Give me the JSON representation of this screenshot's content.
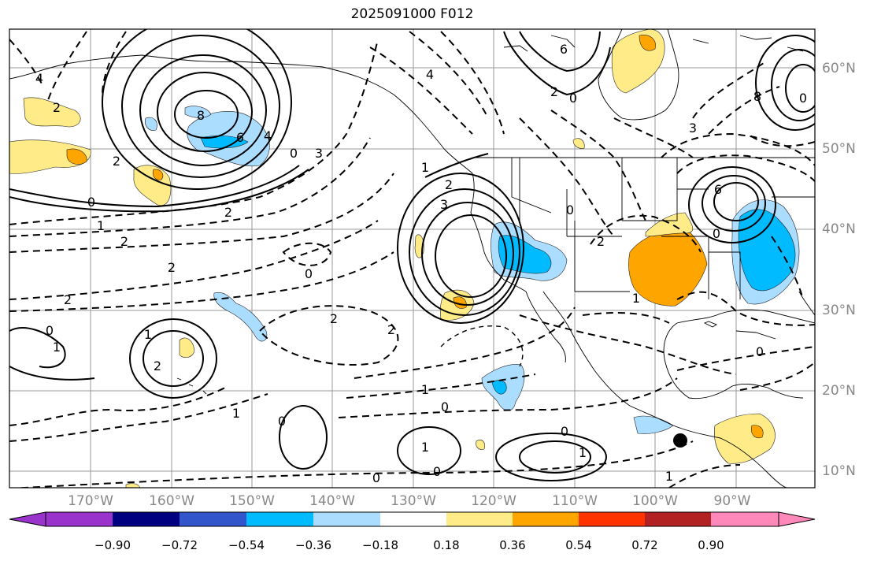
{
  "title": "2025091000 F012",
  "lat_labels": [
    "60°N",
    "50°N",
    "40°N",
    "30°N",
    "20°N",
    "10°N"
  ],
  "lon_labels": [
    "170°W",
    "160°W",
    "150°W",
    "140°W",
    "130°W",
    "120°W",
    "110°W",
    "100°W",
    "90°W"
  ],
  "colorbar": {
    "colors": [
      "#9933cc",
      "#000080",
      "#3355cc",
      "#00bbff",
      "#aaddff",
      "#ffffff",
      "#ffeb88",
      "#ffa500",
      "#ff3300",
      "#b22222",
      "#ff88bb"
    ],
    "tick_labels": [
      "−0.90",
      "−0.72",
      "−0.54",
      "−0.36",
      "−0.18",
      "0.18",
      "0.36",
      "0.54",
      "0.72",
      "0.90"
    ]
  },
  "contour_labels": {
    "l1": "4",
    "l2": "2",
    "l3": "2",
    "l4": "8",
    "l5": "6",
    "l6": "4",
    "l7": "0",
    "l8": "3",
    "l9": "0",
    "l10": "1",
    "l11": "2",
    "l12": "2",
    "l13": "2",
    "l14": "0",
    "l15": "2",
    "l16": "2",
    "l17": "2",
    "l18": "0",
    "l19": "1",
    "l20": "1",
    "l21": "2",
    "l22": "1",
    "l23": "0",
    "l24": "1",
    "l25": "0",
    "l26": "0",
    "l27": "1",
    "l28": "0",
    "l29": "0",
    "l30": "1",
    "l31": "2",
    "l32": "3",
    "l33": "1",
    "l34": "6",
    "l35": "2",
    "l36": "0",
    "l37": "4",
    "l38": "3",
    "l39": "0",
    "l40": "2",
    "l41": "0",
    "l42": "6",
    "l43": "8",
    "l44": "0",
    "l45": "1",
    "l46": "0",
    "l47": "1"
  }
}
